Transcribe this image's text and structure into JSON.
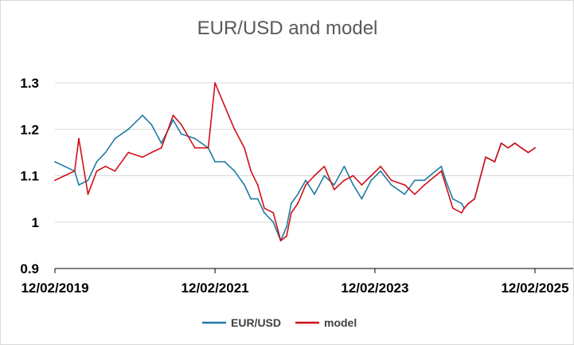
{
  "chart_data": {
    "type": "line",
    "title": "EUR/USD and model",
    "xlabel": "",
    "ylabel": "",
    "ylim": [
      0.9,
      1.3
    ],
    "yticks": [
      "0.9",
      "1",
      "1.1",
      "1.2",
      "1.3"
    ],
    "xticks": [
      "12/02/2019",
      "12/02/2021",
      "12/02/2023",
      "12/02/2025"
    ],
    "xlim": [
      "2019-12-02",
      "2025-12-02"
    ],
    "grid": true,
    "legend_position": "bottom",
    "colors": {
      "eurusd": "#1f7ba3",
      "model": "#d10f17",
      "grid": "#d9d9d9",
      "axis": "#000000"
    },
    "series": [
      {
        "name": "EUR/USD",
        "x": [
          "2019-12-02",
          "2020-01-15",
          "2020-03-01",
          "2020-03-20",
          "2020-05-01",
          "2020-06-10",
          "2020-07-20",
          "2020-09-01",
          "2020-11-01",
          "2021-01-05",
          "2021-02-15",
          "2021-04-01",
          "2021-05-25",
          "2021-07-01",
          "2021-09-01",
          "2021-11-01",
          "2021-12-02",
          "2022-01-15",
          "2022-03-01",
          "2022-04-15",
          "2022-05-15",
          "2022-06-15",
          "2022-07-15",
          "2022-08-25",
          "2022-09-28",
          "2022-10-25",
          "2022-11-15",
          "2022-12-15",
          "2023-01-20",
          "2023-03-01",
          "2023-04-15",
          "2023-05-30",
          "2023-07-15",
          "2023-08-25",
          "2023-10-03",
          "2023-11-15",
          "2023-12-28",
          "2024-02-15",
          "2024-04-16",
          "2024-06-01",
          "2024-07-15",
          "2024-09-30",
          "2024-10-20",
          "2024-11-22",
          "2025-01-01",
          "2025-01-13",
          "2025-02-01",
          "2025-03-01",
          "2025-04-21",
          "2025-06-01",
          "2025-07-01",
          "2025-08-01",
          "2025-09-01",
          "2025-10-01",
          "2025-11-01",
          "2025-12-02"
        ],
        "values": [
          1.13,
          1.12,
          1.11,
          1.08,
          1.09,
          1.13,
          1.15,
          1.18,
          1.2,
          1.23,
          1.21,
          1.17,
          1.22,
          1.19,
          1.18,
          1.16,
          1.13,
          1.13,
          1.11,
          1.08,
          1.05,
          1.05,
          1.02,
          1.0,
          0.96,
          0.99,
          1.04,
          1.06,
          1.09,
          1.06,
          1.1,
          1.08,
          1.12,
          1.08,
          1.05,
          1.09,
          1.11,
          1.08,
          1.06,
          1.09,
          1.09,
          1.12,
          1.09,
          1.05,
          1.04,
          1.03,
          1.04,
          1.05,
          1.14,
          1.13,
          1.17,
          1.16,
          1.17,
          1.16,
          1.15,
          1.16
        ]
      },
      {
        "name": "model",
        "x": [
          "2019-12-02",
          "2020-01-15",
          "2020-03-01",
          "2020-03-20",
          "2020-05-01",
          "2020-06-10",
          "2020-07-20",
          "2020-09-01",
          "2020-11-01",
          "2021-01-05",
          "2021-02-15",
          "2021-04-01",
          "2021-05-25",
          "2021-07-01",
          "2021-09-01",
          "2021-11-01",
          "2021-12-02",
          "2022-01-15",
          "2022-03-01",
          "2022-04-15",
          "2022-05-15",
          "2022-06-15",
          "2022-07-15",
          "2022-08-25",
          "2022-09-28",
          "2022-10-25",
          "2022-11-15",
          "2022-12-15",
          "2023-01-20",
          "2023-03-01",
          "2023-04-15",
          "2023-05-30",
          "2023-07-15",
          "2023-08-25",
          "2023-10-03",
          "2023-11-15",
          "2023-12-28",
          "2024-02-15",
          "2024-04-16",
          "2024-06-01",
          "2024-07-15",
          "2024-09-30",
          "2024-10-20",
          "2024-11-22",
          "2025-01-01",
          "2025-01-13",
          "2025-02-01",
          "2025-03-01",
          "2025-04-21",
          "2025-06-01",
          "2025-07-01",
          "2025-08-01",
          "2025-09-01",
          "2025-10-01",
          "2025-11-01",
          "2025-12-02"
        ],
        "values": [
          1.09,
          1.1,
          1.11,
          1.18,
          1.06,
          1.11,
          1.12,
          1.11,
          1.15,
          1.14,
          1.15,
          1.16,
          1.23,
          1.21,
          1.16,
          1.16,
          1.3,
          1.25,
          1.2,
          1.16,
          1.11,
          1.08,
          1.03,
          1.02,
          0.96,
          0.97,
          1.02,
          1.04,
          1.08,
          1.1,
          1.12,
          1.07,
          1.09,
          1.1,
          1.08,
          1.1,
          1.12,
          1.09,
          1.08,
          1.06,
          1.08,
          1.11,
          1.08,
          1.03,
          1.02,
          1.03,
          1.04,
          1.05,
          1.14,
          1.13,
          1.17,
          1.16,
          1.17,
          1.16,
          1.15,
          1.16
        ]
      }
    ]
  }
}
